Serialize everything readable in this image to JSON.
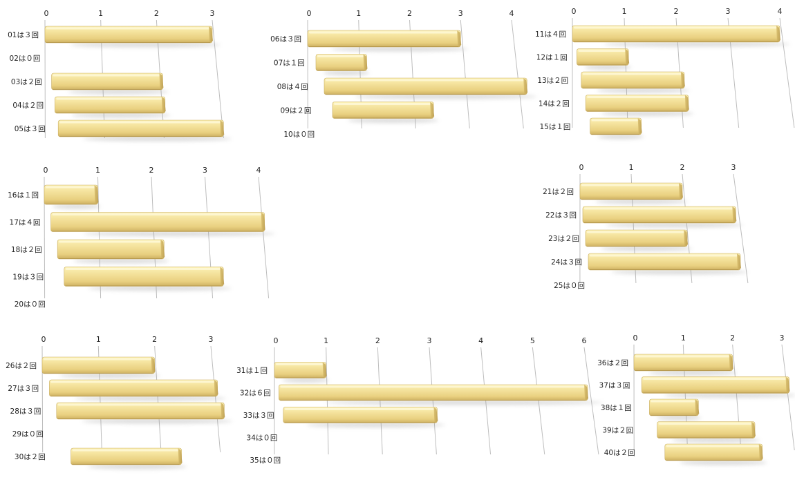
{
  "colors": {
    "bar_top": "#fcf1b6",
    "bar_mid": "#f2dd8f",
    "bar_bottom": "#dcc070",
    "bar_end": "#c7a85a",
    "grid": "#bdbdbd",
    "shadow": "#9a9a9a"
  },
  "chart_data": [
    {
      "type": "bar",
      "orientation": "horizontal",
      "xlim": [
        0,
        3
      ],
      "ticks": [
        "0",
        "1",
        "2",
        "3"
      ],
      "categories": [
        "01は３回",
        "02は０回",
        "03は２回",
        "04は２回",
        "05は３回"
      ],
      "values": [
        3,
        0,
        2,
        2,
        3
      ]
    },
    {
      "type": "bar",
      "orientation": "horizontal",
      "xlim": [
        0,
        4
      ],
      "ticks": [
        "0",
        "1",
        "2",
        "3",
        "4"
      ],
      "categories": [
        "06は３回",
        "07は１回",
        "08は４回",
        "09は２回",
        "10は０回"
      ],
      "values": [
        3,
        1,
        4,
        2,
        0
      ]
    },
    {
      "type": "bar",
      "orientation": "horizontal",
      "xlim": [
        0,
        4
      ],
      "ticks": [
        "0",
        "1",
        "2",
        "3",
        "4"
      ],
      "categories": [
        "11は４回",
        "12は１回",
        "13は２回",
        "14は２回",
        "15は１回"
      ],
      "values": [
        4,
        1,
        2,
        2,
        1
      ]
    },
    {
      "type": "bar",
      "orientation": "horizontal",
      "xlim": [
        0,
        4
      ],
      "ticks": [
        "0",
        "1",
        "2",
        "3",
        "4"
      ],
      "categories": [
        "16は１回",
        "17は４回",
        "18は２回",
        "19は３回",
        "20は０回"
      ],
      "values": [
        1,
        4,
        2,
        3,
        0
      ]
    },
    {
      "type": "bar",
      "orientation": "horizontal",
      "xlim": [
        0,
        3
      ],
      "ticks": [
        "0",
        "1",
        "2",
        "3"
      ],
      "categories": [
        "21は２回",
        "22は３回",
        "23は２回",
        "24は３回",
        "25は０回"
      ],
      "values": [
        2,
        3,
        2,
        3,
        0
      ]
    },
    {
      "type": "bar",
      "orientation": "horizontal",
      "xlim": [
        0,
        3
      ],
      "ticks": [
        "0",
        "1",
        "2",
        "3"
      ],
      "categories": [
        "26は２回",
        "27は３回",
        "28は３回",
        "29は０回",
        "30は２回"
      ],
      "values": [
        2,
        3,
        3,
        0,
        2
      ]
    },
    {
      "type": "bar",
      "orientation": "horizontal",
      "xlim": [
        0,
        6
      ],
      "ticks": [
        "0",
        "1",
        "2",
        "3",
        "4",
        "5",
        "6"
      ],
      "categories": [
        "31は１回",
        "32は６回",
        "33は３回",
        "34は０回",
        "35は０回"
      ],
      "values": [
        1,
        6,
        3,
        0,
        0
      ]
    },
    {
      "type": "bar",
      "orientation": "horizontal",
      "xlim": [
        0,
        3
      ],
      "ticks": [
        "0",
        "1",
        "2",
        "3"
      ],
      "categories": [
        "36は２回",
        "37は３回",
        "38は１回",
        "39は２回",
        "40は２回"
      ],
      "values": [
        2,
        3,
        1,
        2,
        2
      ]
    }
  ]
}
